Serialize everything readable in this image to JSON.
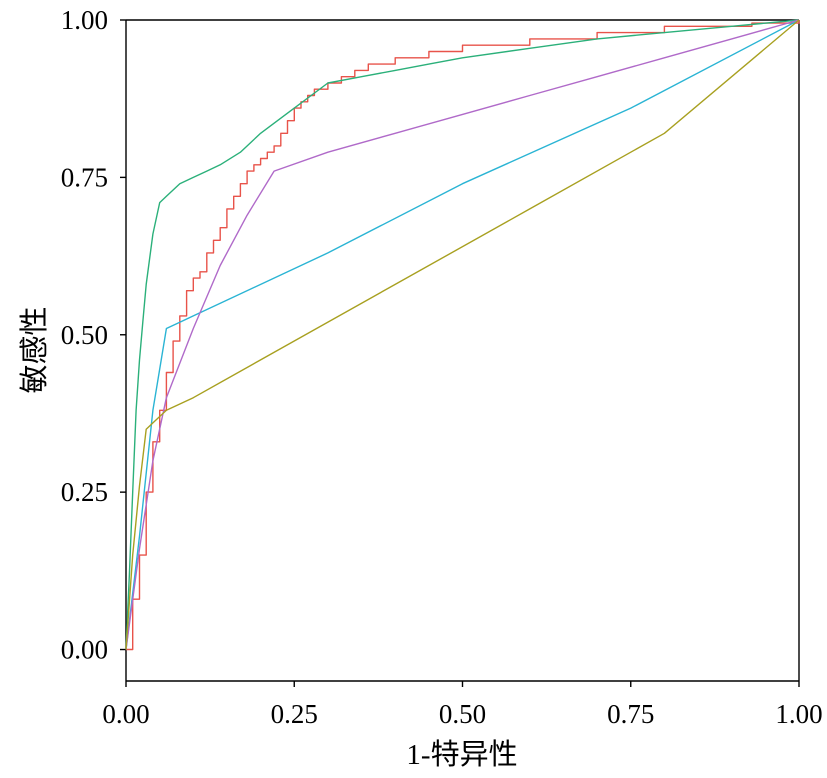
{
  "chart_data": {
    "type": "line",
    "xlabel": "1-特异性",
    "ylabel": "敏感性",
    "xlim": [
      0,
      1
    ],
    "ylim": [
      -0.05,
      1.0
    ],
    "x_ticks": [
      "0.00",
      "0.25",
      "0.50",
      "0.75",
      "1.00"
    ],
    "y_ticks": [
      "0.00",
      "0.25",
      "0.50",
      "0.75",
      "1.00"
    ],
    "grid": false,
    "series": [
      {
        "color": "#e8534a",
        "step": true,
        "x": [
          0,
          0.01,
          0.02,
          0.03,
          0.04,
          0.05,
          0.06,
          0.07,
          0.08,
          0.09,
          0.1,
          0.11,
          0.12,
          0.13,
          0.14,
          0.15,
          0.16,
          0.17,
          0.18,
          0.19,
          0.2,
          0.21,
          0.22,
          0.23,
          0.24,
          0.25,
          0.26,
          0.27,
          0.28,
          0.29,
          0.3,
          0.32,
          0.34,
          0.36,
          0.4,
          0.45,
          0.5,
          0.6,
          0.7,
          0.8,
          0.9,
          0.93,
          1.0
        ],
        "y": [
          0,
          0.08,
          0.15,
          0.25,
          0.33,
          0.38,
          0.44,
          0.49,
          0.53,
          0.57,
          0.59,
          0.6,
          0.63,
          0.65,
          0.67,
          0.7,
          0.72,
          0.74,
          0.76,
          0.77,
          0.78,
          0.79,
          0.8,
          0.82,
          0.84,
          0.86,
          0.87,
          0.88,
          0.89,
          0.89,
          0.9,
          0.91,
          0.92,
          0.93,
          0.94,
          0.95,
          0.96,
          0.97,
          0.98,
          0.99,
          0.99,
          0.995,
          1.0
        ]
      },
      {
        "color": "#2bb07a",
        "step": false,
        "x": [
          0,
          0.005,
          0.01,
          0.015,
          0.02,
          0.025,
          0.03,
          0.04,
          0.05,
          0.06,
          0.07,
          0.08,
          0.1,
          0.12,
          0.14,
          0.17,
          0.2,
          0.25,
          0.3,
          0.35,
          0.4,
          0.45,
          0.5,
          0.6,
          0.7,
          0.8,
          0.9,
          1.0
        ],
        "y": [
          0,
          0.12,
          0.25,
          0.38,
          0.46,
          0.52,
          0.58,
          0.66,
          0.71,
          0.72,
          0.73,
          0.74,
          0.75,
          0.76,
          0.77,
          0.79,
          0.82,
          0.86,
          0.9,
          0.91,
          0.92,
          0.93,
          0.94,
          0.955,
          0.97,
          0.98,
          0.99,
          1.0
        ]
      },
      {
        "color": "#2ab4d4",
        "step": false,
        "x": [
          0,
          0.02,
          0.04,
          0.06,
          0.08,
          0.1,
          0.3,
          0.5,
          0.75,
          1.0
        ],
        "y": [
          0,
          0.18,
          0.38,
          0.51,
          0.52,
          0.53,
          0.63,
          0.74,
          0.86,
          1.0
        ]
      },
      {
        "color": "#b06ac9",
        "step": false,
        "x": [
          0,
          0.02,
          0.04,
          0.06,
          0.1,
          0.14,
          0.18,
          0.22,
          0.3,
          0.4,
          0.5,
          0.6,
          0.7,
          0.8,
          0.9,
          1.0
        ],
        "y": [
          0,
          0.16,
          0.3,
          0.4,
          0.51,
          0.61,
          0.69,
          0.76,
          0.79,
          0.82,
          0.85,
          0.88,
          0.91,
          0.94,
          0.97,
          1.0
        ]
      },
      {
        "color": "#a8a020",
        "step": false,
        "x": [
          0,
          0.01,
          0.02,
          0.03,
          0.04,
          0.06,
          0.1,
          0.2,
          0.4,
          0.6,
          0.8,
          1.0
        ],
        "y": [
          0,
          0.15,
          0.26,
          0.35,
          0.36,
          0.38,
          0.4,
          0.46,
          0.58,
          0.7,
          0.82,
          1.0
        ]
      }
    ]
  }
}
